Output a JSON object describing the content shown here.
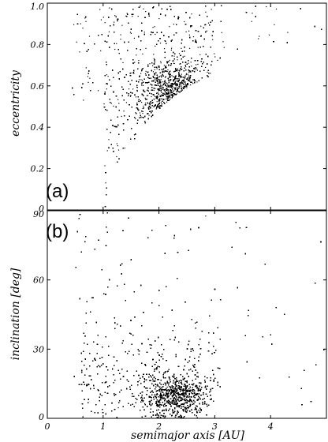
{
  "chart_data": [
    {
      "type": "scatter",
      "panel_label": "(a)",
      "xlabel": "",
      "ylabel": "eccentricity",
      "xlim": [
        0,
        5
      ],
      "ylim": [
        0,
        1
      ],
      "x_ticks": [
        0,
        1,
        2,
        3,
        4
      ],
      "y_ticks": [
        0,
        0.2,
        0.4,
        0.6,
        0.8,
        1
      ],
      "x_tick_labels": [],
      "y_tick_labels": [
        "0",
        "0.2",
        "0.4",
        "0.6",
        "0.8",
        "1.0"
      ],
      "grid": false,
      "marker_color": "#000000",
      "description_of_distribution": {
        "x_min": 0.4,
        "e_lower_bound": "1 - 1.017/a (perihelion near 1.017 AU)",
        "density_peak": {
          "x": 2.3,
          "y": 0.5
        },
        "sparse_beyond_x": 3.0
      }
    },
    {
      "type": "scatter",
      "panel_label": "(b)",
      "xlabel": "semimajor axis [AU]",
      "ylabel": "inclination [deg]",
      "xlim": [
        0,
        5
      ],
      "ylim": [
        0,
        90
      ],
      "x_ticks": [
        0,
        1,
        2,
        3,
        4
      ],
      "y_ticks": [
        0,
        30,
        60,
        90
      ],
      "x_tick_labels": [
        "0",
        "1",
        "2",
        "3",
        "4"
      ],
      "y_tick_labels": [
        "0",
        "30",
        "60",
        "90"
      ],
      "grid": false,
      "marker_color": "#000000",
      "description_of_distribution": {
        "x_min": 0.4,
        "density_peak": {
          "x": 2.3,
          "y": 10
        },
        "sparse_beyond_x": 3.0
      }
    }
  ]
}
